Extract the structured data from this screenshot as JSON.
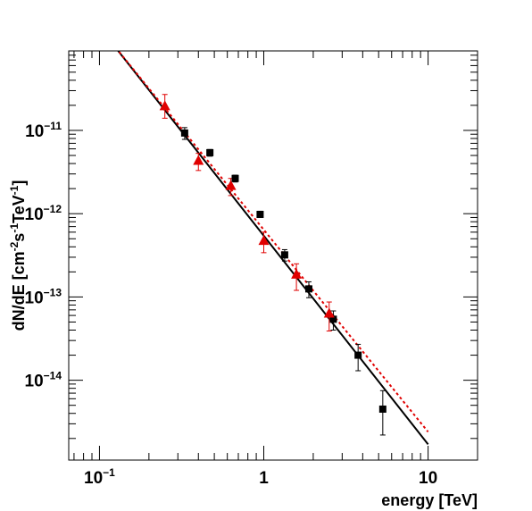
{
  "chart_data": {
    "type": "scatter",
    "xlabel": "energy [TeV]",
    "ylabel": {
      "prefix": "dN/dE [cm",
      "exp1": "-2",
      "mid1": "s",
      "exp2": "-1",
      "mid2": "TeV",
      "exp3": "-1",
      "suffix": "]"
    },
    "x_scale": "log",
    "y_scale": "log",
    "xlim": [
      0.065,
      20
    ],
    "ylim": [
      1.1e-15,
      9e-11
    ],
    "x_ticks": [
      {
        "value": 0.1,
        "base": "10",
        "exp": "−1"
      },
      {
        "value": 1,
        "base": "1",
        "exp": ""
      },
      {
        "value": 10,
        "base": "10",
        "exp": ""
      }
    ],
    "y_ticks": [
      {
        "value": 1e-14,
        "base": "10",
        "exp": "−14"
      },
      {
        "value": 1e-13,
        "base": "10",
        "exp": "−13"
      },
      {
        "value": 1e-12,
        "base": "10",
        "exp": "−12"
      },
      {
        "value": 1e-11,
        "base": "10",
        "exp": "−11"
      }
    ],
    "grid": false,
    "legend": "none",
    "series": [
      {
        "marker": "square",
        "color": "#000000",
        "points": [
          {
            "x": 0.33,
            "y": 9.3e-12,
            "ylo": 7.8e-12,
            "yhi": 1.08e-11
          },
          {
            "x": 0.47,
            "y": 5.4e-12,
            "ylo": 4.9e-12,
            "yhi": 5.9e-12
          },
          {
            "x": 0.67,
            "y": 2.65e-12,
            "ylo": 2.4e-12,
            "yhi": 2.9e-12
          },
          {
            "x": 0.95,
            "y": 9.8e-13,
            "ylo": 9e-13,
            "yhi": 1.07e-12
          },
          {
            "x": 1.34,
            "y": 3.2e-13,
            "ylo": 2.7e-13,
            "yhi": 3.7e-13
          },
          {
            "x": 1.88,
            "y": 1.25e-13,
            "ylo": 9.8e-14,
            "yhi": 1.52e-13
          },
          {
            "x": 2.65,
            "y": 5.4e-14,
            "ylo": 4e-14,
            "yhi": 6.8e-14
          },
          {
            "x": 3.75,
            "y": 2e-14,
            "ylo": 1.3e-14,
            "yhi": 2.7e-14
          },
          {
            "x": 5.3,
            "y": 4.5e-15,
            "ylo": 2.2e-15,
            "yhi": 7.5e-15
          }
        ]
      },
      {
        "marker": "triangle",
        "color": "#e00000",
        "points": [
          {
            "x": 0.25,
            "y": 1.95e-11,
            "ylo": 1.4e-11,
            "yhi": 2.7e-11
          },
          {
            "x": 0.4,
            "y": 4.3e-12,
            "ylo": 3.3e-12,
            "yhi": 5.3e-12
          },
          {
            "x": 0.63,
            "y": 2.15e-12,
            "ylo": 1.65e-12,
            "yhi": 2.65e-12
          },
          {
            "x": 1.0,
            "y": 4.7e-13,
            "ylo": 3.4e-13,
            "yhi": 6e-13
          },
          {
            "x": 1.58,
            "y": 1.85e-13,
            "ylo": 1.2e-13,
            "yhi": 2.5e-13
          },
          {
            "x": 2.5,
            "y": 6.3e-14,
            "ylo": 3.9e-14,
            "yhi": 8.7e-14
          }
        ]
      }
    ],
    "fits": [
      {
        "style": "solid",
        "color": "#000000",
        "x": [
          0.12,
          10
        ],
        "y": [
          1.1e-10,
          1.7e-15
        ]
      },
      {
        "style": "dotted",
        "color": "#e00000",
        "x": [
          0.12,
          10
        ],
        "y": [
          1.1e-10,
          2.4e-15
        ]
      }
    ]
  }
}
